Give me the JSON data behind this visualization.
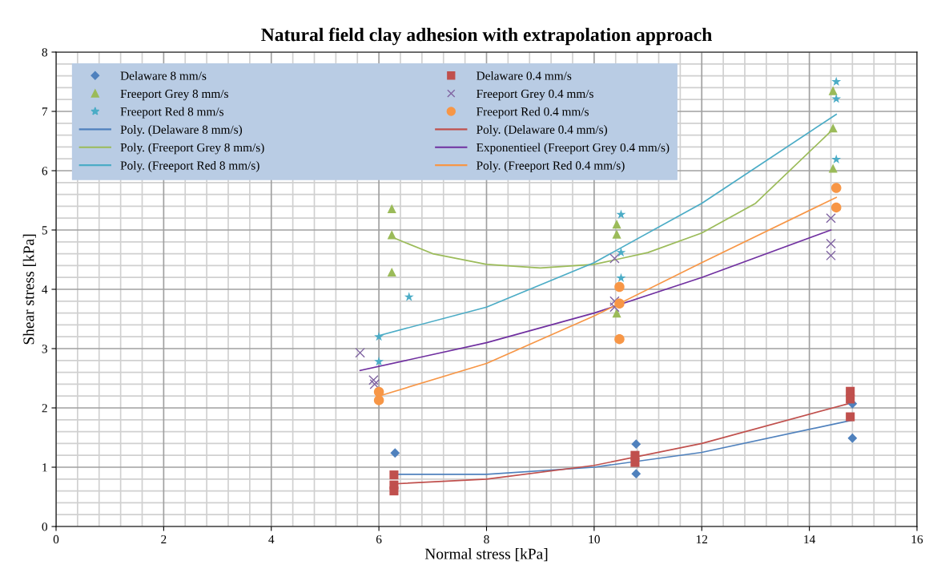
{
  "chart_data": {
    "type": "scatter",
    "title": "Natural field clay adhesion with extrapolation approach",
    "xlabel": "Normal stress [kPa]",
    "ylabel": "Shear stress [kPa]",
    "xlim": [
      0,
      16
    ],
    "xticks": [
      0,
      2,
      4,
      6,
      8,
      10,
      12,
      14,
      16
    ],
    "ylim": [
      0,
      8
    ],
    "yticks": [
      0,
      1,
      2,
      3,
      4,
      5,
      6,
      7,
      8
    ],
    "grid": true,
    "legend": "top left",
    "series": [
      {
        "name": "Delaware 8 mm/s",
        "color": "#4f81bd",
        "marker": "diamond",
        "x": [
          6.3,
          10.78,
          10.78,
          14.8,
          14.8
        ],
        "values": [
          1.24,
          1.39,
          0.89,
          2.07,
          1.49
        ]
      },
      {
        "name": "Delaware 0.4 mm/s",
        "color": "#c0504d",
        "marker": "square",
        "x": [
          6.28,
          6.28,
          6.28,
          10.76,
          10.76,
          14.76,
          14.76,
          14.76
        ],
        "values": [
          0.6,
          0.7,
          0.87,
          1.08,
          1.2,
          2.28,
          2.15,
          1.85
        ]
      },
      {
        "name": "Freeport Grey 8 mm/s",
        "color": "#9bbb59",
        "marker": "triangle",
        "x": [
          6.24,
          6.24,
          6.24,
          10.42,
          10.42,
          10.42,
          14.44,
          14.44,
          14.44
        ],
        "values": [
          5.36,
          4.92,
          4.29,
          5.1,
          4.93,
          3.6,
          7.35,
          6.72,
          6.04
        ]
      },
      {
        "name": "Freeport Grey 0.4 mm/s",
        "color": "#8064a2",
        "marker": "cross",
        "x": [
          5.65,
          5.9,
          5.92,
          10.38,
          10.38,
          10.38,
          14.4,
          14.4,
          14.4
        ],
        "values": [
          2.93,
          2.47,
          2.4,
          4.52,
          3.8,
          3.7,
          5.2,
          4.77,
          4.57
        ]
      },
      {
        "name": "Freeport Red 8 mm/s",
        "color": "#4bacc6",
        "marker": "star",
        "x": [
          6.0,
          6.0,
          6.56,
          10.5,
          10.5,
          10.5,
          14.5,
          14.5,
          14.5
        ],
        "values": [
          3.2,
          2.78,
          3.87,
          5.26,
          4.62,
          4.19,
          7.5,
          7.21,
          6.19
        ]
      },
      {
        "name": "Freeport Red 0.4 mm/s",
        "color": "#f79646",
        "marker": "circle",
        "x": [
          6.0,
          6.0,
          10.47,
          10.47,
          10.47,
          14.5,
          14.5
        ],
        "values": [
          2.27,
          2.13,
          4.04,
          3.76,
          3.16,
          5.71,
          5.38
        ]
      },
      {
        "name": "Poly. (Delaware 8 mm/s)",
        "type": "line",
        "color": "#4f81bd",
        "marker": "none",
        "x": [
          6.3,
          8,
          10,
          12,
          14.78
        ],
        "values": [
          0.88,
          0.88,
          1.0,
          1.25,
          1.79
        ]
      },
      {
        "name": "Poly. (Delaware 0.4 mm/s)",
        "type": "line",
        "color": "#c0504d",
        "marker": "none",
        "x": [
          6.28,
          8,
          10,
          12,
          14.76
        ],
        "values": [
          0.72,
          0.8,
          1.03,
          1.4,
          2.08
        ]
      },
      {
        "name": "Poly. (Freeport Grey 8 mm/s)",
        "type": "line",
        "color": "#9bbb59",
        "marker": "none",
        "x": [
          6.24,
          7,
          8,
          9,
          10,
          11,
          12,
          13,
          14.44
        ],
        "values": [
          4.88,
          4.6,
          4.42,
          4.36,
          4.42,
          4.62,
          4.95,
          5.45,
          6.7
        ]
      },
      {
        "name": "Exponentieel (Freeport Grey 0.4 mm/s)",
        "type": "line",
        "color": "#7030a0",
        "marker": "none",
        "x": [
          5.65,
          8,
          10,
          12,
          14.4
        ],
        "values": [
          2.63,
          3.1,
          3.6,
          4.2,
          5.0
        ]
      },
      {
        "name": "Poly. (Freeport Red 8 mm/s)",
        "type": "line",
        "color": "#4bacc6",
        "marker": "none",
        "x": [
          6.0,
          8,
          10,
          12,
          14.5
        ],
        "values": [
          3.22,
          3.7,
          4.45,
          5.45,
          6.95
        ]
      },
      {
        "name": "Poly. (Freeport Red 0.4 mm/s)",
        "type": "line",
        "color": "#f79646",
        "marker": "none",
        "x": [
          6.0,
          8,
          10,
          12,
          14.5
        ],
        "values": [
          2.2,
          2.75,
          3.55,
          4.45,
          5.55
        ]
      }
    ]
  }
}
